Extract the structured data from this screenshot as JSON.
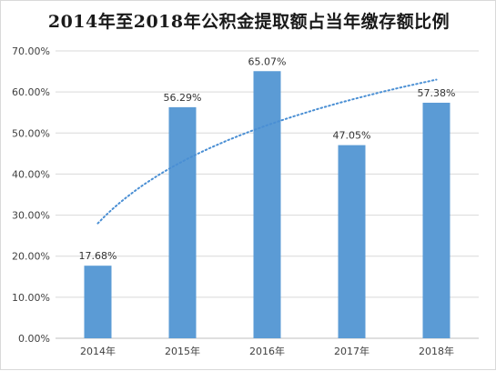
{
  "chart_data": {
    "type": "bar",
    "title": "2014年至2018年公积金提取额占当年缴存额比例",
    "xlabel": "",
    "ylabel": "",
    "categories": [
      "2014年",
      "2015年",
      "2016年",
      "2017年",
      "2018年"
    ],
    "values": [
      17.68,
      56.29,
      65.07,
      47.05,
      57.38
    ],
    "data_labels": [
      "17.68%",
      "56.29%",
      "65.07%",
      "47.05%",
      "57.38%"
    ],
    "ylim": [
      0,
      70
    ],
    "yticks": [
      0,
      10,
      20,
      30,
      40,
      50,
      60,
      70
    ],
    "ytick_labels": [
      "0.00%",
      "10.00%",
      "20.00%",
      "30.00%",
      "40.00%",
      "50.00%",
      "60.00%",
      "70.00%"
    ],
    "grid": true,
    "legend": "none",
    "trendline": {
      "type": "logarithmic",
      "style": "dotted",
      "start_value": 28,
      "end_value": 63
    },
    "colors": {
      "bar": "#5b9bd5",
      "trendline": "#4a8fd4",
      "grid": "#d9d9d9",
      "axis": "#bfbfbf"
    }
  }
}
